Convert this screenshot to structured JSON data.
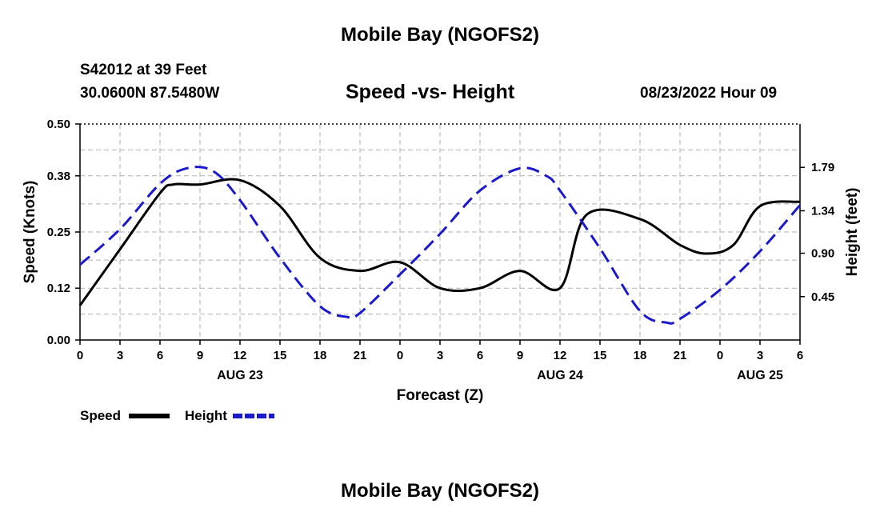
{
  "header": {
    "title": "Mobile Bay (NGOFS2)",
    "station": "S42012 at 39 Feet",
    "coordinates": "30.0600N  87.5480W",
    "subtitle": "Speed -vs- Height",
    "datetime": "08/23/2022 Hour 09"
  },
  "footer": {
    "title": "Mobile Bay (NGOFS2)"
  },
  "colors": {
    "speed": "#000000",
    "height": "#1a1acc",
    "grid": "#b0b0b0"
  },
  "chart_data": {
    "type": "line",
    "xlabel": "Forecast (Z)",
    "ylabel_left": "Speed (Knots)",
    "ylabel_right": "Height (feet)",
    "x_range_hours": [
      0,
      54
    ],
    "x_ticks": [
      {
        "h": 0,
        "label": "0"
      },
      {
        "h": 3,
        "label": "3"
      },
      {
        "h": 6,
        "label": "6"
      },
      {
        "h": 9,
        "label": "9"
      },
      {
        "h": 12,
        "label": "12"
      },
      {
        "h": 15,
        "label": "15"
      },
      {
        "h": 18,
        "label": "18"
      },
      {
        "h": 21,
        "label": "21"
      },
      {
        "h": 24,
        "label": "0"
      },
      {
        "h": 27,
        "label": "3"
      },
      {
        "h": 30,
        "label": "6"
      },
      {
        "h": 33,
        "label": "9"
      },
      {
        "h": 36,
        "label": "12"
      },
      {
        "h": 39,
        "label": "15"
      },
      {
        "h": 42,
        "label": "18"
      },
      {
        "h": 45,
        "label": "21"
      },
      {
        "h": 48,
        "label": "0"
      },
      {
        "h": 51,
        "label": "3"
      },
      {
        "h": 54,
        "label": "6"
      }
    ],
    "date_labels": [
      {
        "h": 12,
        "label": "AUG 23"
      },
      {
        "h": 36,
        "label": "AUG 24"
      },
      {
        "h": 51,
        "label": "AUG 25"
      }
    ],
    "y_left": {
      "range": [
        0,
        0.5
      ],
      "ticks": [
        "0.00",
        "0.12",
        "0.25",
        "0.38",
        "0.50"
      ]
    },
    "y_right": {
      "range": [
        0,
        2.24
      ],
      "ticks": [
        "0.45",
        "0.90",
        "1.34",
        "1.79"
      ]
    },
    "series": [
      {
        "name": "Speed",
        "axis": "left",
        "style": "solid",
        "x": [
          0,
          3,
          6,
          7,
          9,
          12,
          15,
          18,
          21,
          24,
          27,
          30,
          33,
          36,
          38,
          42,
          45,
          47,
          49,
          51,
          54
        ],
        "y": [
          0.08,
          0.21,
          0.34,
          0.36,
          0.36,
          0.37,
          0.31,
          0.19,
          0.16,
          0.18,
          0.12,
          0.12,
          0.16,
          0.12,
          0.29,
          0.28,
          0.22,
          0.2,
          0.22,
          0.31,
          0.32
        ]
      },
      {
        "name": "Height",
        "axis": "right",
        "style": "dashed",
        "x": [
          0,
          3,
          6,
          8,
          10,
          12,
          15,
          18,
          20,
          21,
          24,
          27,
          30,
          33,
          35,
          36,
          39,
          42,
          44,
          45,
          48,
          51,
          54
        ],
        "y": [
          0.78,
          1.15,
          1.62,
          1.78,
          1.75,
          1.45,
          0.85,
          0.35,
          0.24,
          0.28,
          0.68,
          1.1,
          1.55,
          1.78,
          1.7,
          1.55,
          0.95,
          0.3,
          0.18,
          0.22,
          0.52,
          0.92,
          1.4
        ]
      }
    ],
    "legend": [
      {
        "name": "Speed",
        "style": "solid"
      },
      {
        "name": "Height",
        "style": "dashed"
      }
    ],
    "grid": true
  }
}
